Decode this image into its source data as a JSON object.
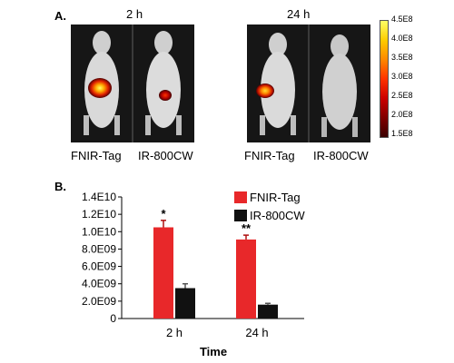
{
  "panel_a": {
    "label": "A.",
    "groups": [
      {
        "time": "2 h",
        "animals": [
          "FNIR-Tag",
          "IR-800CW"
        ],
        "signal": [
          "large",
          "small"
        ]
      },
      {
        "time": "24 h",
        "animals": [
          "FNIR-Tag",
          "IR-800CW"
        ],
        "signal": [
          "medium",
          "none"
        ]
      }
    ],
    "colorbar": {
      "ticks": [
        "4.5E8",
        "4.0E8",
        "3.5E8",
        "3.0E8",
        "2.5E8",
        "2.0E8",
        "1.5E8"
      ],
      "colors": [
        "#ffff66",
        "#ffcc00",
        "#ff8800",
        "#ff3300",
        "#cc0000",
        "#800000",
        "#3a0000"
      ]
    }
  },
  "panel_b": {
    "label": "B."
  },
  "chart_data": {
    "type": "bar",
    "categories": [
      "2 h",
      "24 h"
    ],
    "xlabel": "Time",
    "ylabel": "",
    "ylim": [
      0,
      14000000000
    ],
    "yticks": [
      "0",
      "2.0E09",
      "4.0E09",
      "6.0E09",
      "8.0E09",
      "1.0E10",
      "1.2E10",
      "1.4E10"
    ],
    "series": [
      {
        "name": "FNIR-Tag",
        "color": "#e8282a",
        "values": [
          10500000000,
          9100000000
        ],
        "errors": [
          800000000,
          500000000
        ],
        "annotations": [
          "*",
          "**"
        ]
      },
      {
        "name": "IR-800CW",
        "color": "#111111",
        "values": [
          3500000000,
          1600000000
        ],
        "errors": [
          500000000,
          150000000
        ],
        "annotations": [
          "",
          ""
        ]
      }
    ],
    "legend_position": "top-right",
    "grid": false
  }
}
